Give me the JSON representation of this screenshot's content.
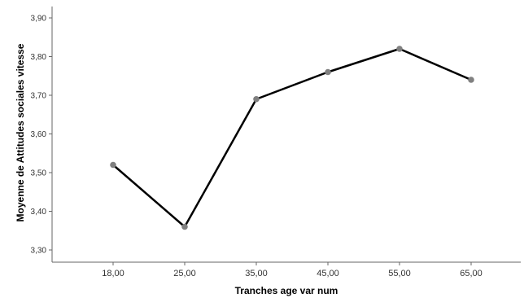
{
  "chart_data": {
    "type": "line",
    "title": "",
    "xlabel": "Tranches age var num",
    "ylabel": "Moyenne de Attitudes sociales vitesse",
    "categories": [
      "18,00",
      "25,00",
      "35,00",
      "45,00",
      "55,00",
      "65,00"
    ],
    "series": [
      {
        "values": [
          3.52,
          3.36,
          3.69,
          3.76,
          3.82,
          3.74
        ]
      }
    ],
    "ylim": [
      3.3,
      3.9
    ],
    "yticks": [
      3.3,
      3.4,
      3.5,
      3.6,
      3.7,
      3.8,
      3.9
    ],
    "ytick_labels": [
      "3,30",
      "3,40",
      "3,50",
      "3,60",
      "3,70",
      "3,80",
      "3,90"
    ],
    "grid": false,
    "line_color": "#000000",
    "marker_color": "#808080"
  }
}
